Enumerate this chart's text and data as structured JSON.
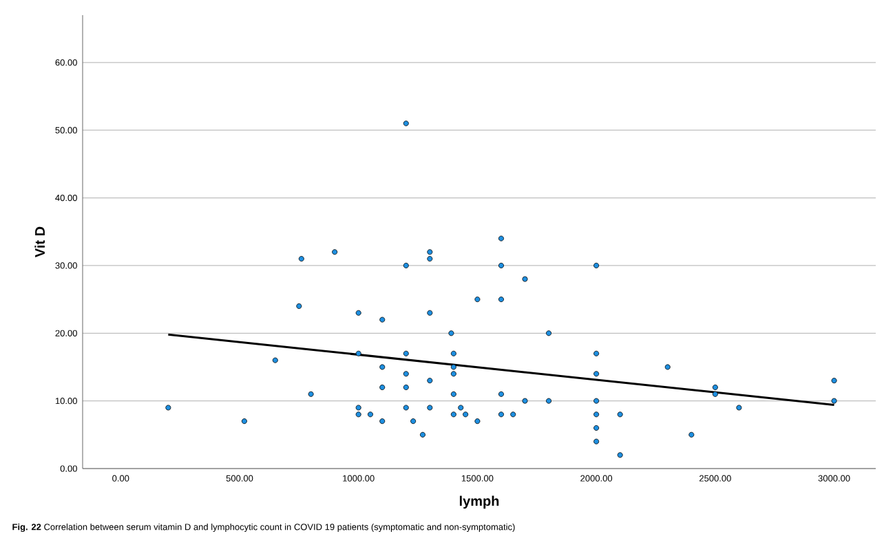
{
  "chart_data": {
    "type": "scatter",
    "xlabel": "lymph",
    "ylabel": "Vit D",
    "annotations": [
      "**Fig. 22**  Correlation between serum vitamin D and lymphocytic count in COVID 19 patients (symptomatic and non-symptomatic)"
    ],
    "xlim": [
      -160,
      3175
    ],
    "ylim": [
      0,
      67
    ],
    "xticks": [
      {
        "value": 0,
        "label": "0.00"
      },
      {
        "value": 500,
        "label": "500.00"
      },
      {
        "value": 1000,
        "label": "1000.00"
      },
      {
        "value": 1500,
        "label": "1500.00"
      },
      {
        "value": 2000,
        "label": "2000.00"
      },
      {
        "value": 2500,
        "label": "2500.00"
      },
      {
        "value": 3000,
        "label": "3000.00"
      }
    ],
    "yticks": [
      {
        "value": 0,
        "label": "0.00"
      },
      {
        "value": 10,
        "label": "10.00"
      },
      {
        "value": 20,
        "label": "20.00"
      },
      {
        "value": 30,
        "label": "30.00"
      },
      {
        "value": 40,
        "label": "40.00"
      },
      {
        "value": 50,
        "label": "50.00"
      },
      {
        "value": 60,
        "label": "60.00"
      }
    ],
    "grid": "y",
    "series": [
      {
        "marker": "circle",
        "color": "#1e8fe0",
        "x": [
          200,
          520,
          650,
          750,
          760,
          800,
          900,
          1000,
          1000,
          1000,
          1000,
          1050,
          1100,
          1100,
          1100,
          1100,
          1200,
          1200,
          1200,
          1200,
          1200,
          1200,
          1230,
          1270,
          1300,
          1300,
          1300,
          1300,
          1300,
          1390,
          1400,
          1400,
          1400,
          1400,
          1400,
          1430,
          1450,
          1500,
          1500,
          1600,
          1600,
          1600,
          1600,
          1600,
          1650,
          1700,
          1700,
          1800,
          1800,
          2000,
          2000,
          2000,
          2000,
          2000,
          2000,
          2000,
          2100,
          2100,
          2300,
          2400,
          2500,
          2500,
          2600,
          3000,
          3000
        ],
        "values": [
          9,
          7,
          16,
          24,
          31,
          11,
          32,
          23,
          17,
          9,
          8,
          8,
          22,
          15,
          12,
          7,
          51,
          30,
          17,
          14,
          12,
          9,
          7,
          5,
          32,
          31,
          23,
          13,
          9,
          20,
          17,
          15,
          14,
          11,
          8,
          9,
          8,
          25,
          7,
          34,
          30,
          25,
          11,
          8,
          8,
          28,
          10,
          20,
          10,
          30,
          17,
          14,
          10,
          8,
          6,
          4,
          8,
          2,
          15,
          5,
          12,
          11,
          9,
          13,
          10
        ]
      },
      {
        "type": "line",
        "marker": "none",
        "color": "#000000",
        "x": [
          200,
          3000
        ],
        "values": [
          19.8,
          9.4
        ]
      }
    ]
  }
}
